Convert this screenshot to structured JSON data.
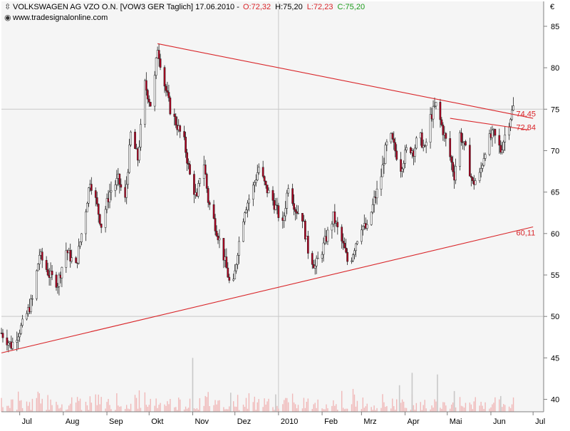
{
  "header": {
    "name": "VOLKSWAGEN AG VZO O.N. [VOW3 GER  Taglich] 17.06.2010 -",
    "open": "O:72,32",
    "high": "H:75,20",
    "low": "L:72,23",
    "close": "C:75,20",
    "watermark": "www.tradesignalonline.com",
    "currency": "€"
  },
  "colors": {
    "background": "#f5f5f5",
    "grid": "#c8c8c8",
    "up": "#ffffff",
    "down": "#b00020",
    "trendline": "#d9262a",
    "volume": "#f0b8b8",
    "volume_peak": "#c8c8c8",
    "header_low": "#d9262a",
    "header_close": "#1a9a1a"
  },
  "chart_data": {
    "type": "candlestick",
    "title": "",
    "xlabel": "",
    "ylabel": "",
    "ylim": [
      38.5,
      88
    ],
    "yticks": [
      40,
      45,
      50,
      55,
      60,
      65,
      70,
      75,
      80,
      85
    ],
    "ytick_labels": [
      "40",
      "45",
      "50",
      "55",
      "60",
      "65",
      "70",
      "75",
      "80",
      "85"
    ],
    "x_start": "2009-06-18",
    "x_end": "2010-07-08",
    "month_ticks": [
      {
        "date": "2009-07-01",
        "label": "Jul"
      },
      {
        "date": "2009-08-01",
        "label": "Aug"
      },
      {
        "date": "2009-09-01",
        "label": "Sep"
      },
      {
        "date": "2009-10-01",
        "label": "Okt"
      },
      {
        "date": "2009-11-01",
        "label": "Nov"
      },
      {
        "date": "2009-12-01",
        "label": "Dez"
      },
      {
        "date": "2010-01-01",
        "label": "2010"
      },
      {
        "date": "2010-02-01",
        "label": "Feb"
      },
      {
        "date": "2010-03-01",
        "label": "Mrz"
      },
      {
        "date": "2010-04-01",
        "label": "Apr"
      },
      {
        "date": "2010-05-01",
        "label": "Mai"
      },
      {
        "date": "2010-06-01",
        "label": "Jun"
      },
      {
        "date": "2010-07-01",
        "label": "Jul"
      }
    ],
    "grid_y": [
      50,
      75
    ],
    "grid_x": [
      "2010-01-01"
    ],
    "price_path": [
      [
        "2009-06-18",
        48.0
      ],
      [
        "2009-06-25",
        46.5
      ],
      [
        "2009-07-03",
        49.0
      ],
      [
        "2009-07-10",
        52.0
      ],
      [
        "2009-07-15",
        57.5
      ],
      [
        "2009-07-22",
        55.0
      ],
      [
        "2009-07-28",
        54.0
      ],
      [
        "2009-08-03",
        58.0
      ],
      [
        "2009-08-10",
        56.0
      ],
      [
        "2009-08-17",
        63.0
      ],
      [
        "2009-08-20",
        66.5
      ],
      [
        "2009-08-24",
        64.0
      ],
      [
        "2009-08-28",
        61.0
      ],
      [
        "2009-09-03",
        65.0
      ],
      [
        "2009-09-09",
        66.5
      ],
      [
        "2009-09-14",
        64.0
      ],
      [
        "2009-09-18",
        72.0
      ],
      [
        "2009-09-23",
        69.0
      ],
      [
        "2009-09-28",
        78.0
      ],
      [
        "2009-10-03",
        75.0
      ],
      [
        "2009-10-07",
        82.5
      ],
      [
        "2009-10-12",
        78.0
      ],
      [
        "2009-10-16",
        75.0
      ],
      [
        "2009-10-21",
        73.0
      ],
      [
        "2009-10-26",
        71.0
      ],
      [
        "2009-10-30",
        67.0
      ],
      [
        "2009-11-04",
        64.0
      ],
      [
        "2009-11-08",
        70.0
      ],
      [
        "2009-11-12",
        64.0
      ],
      [
        "2009-11-17",
        61.0
      ],
      [
        "2009-11-22",
        58.0
      ],
      [
        "2009-11-26",
        55.0
      ],
      [
        "2009-11-29",
        52.5
      ],
      [
        "2009-12-03",
        58.0
      ],
      [
        "2009-12-08",
        63.0
      ],
      [
        "2009-12-13",
        65.0
      ],
      [
        "2009-12-18",
        68.0
      ],
      [
        "2009-12-23",
        65.5
      ],
      [
        "2009-12-28",
        64.0
      ],
      [
        "2010-01-04",
        61.0
      ],
      [
        "2010-01-08",
        66.0
      ],
      [
        "2010-01-13",
        63.0
      ],
      [
        "2010-01-18",
        62.0
      ],
      [
        "2010-01-22",
        58.0
      ],
      [
        "2010-01-27",
        56.0
      ],
      [
        "2010-02-01",
        58.0
      ],
      [
        "2010-02-05",
        60.0
      ],
      [
        "2010-02-09",
        62.0
      ],
      [
        "2010-02-13",
        60.0
      ],
      [
        "2010-02-17",
        58.0
      ],
      [
        "2010-02-20",
        56.0
      ],
      [
        "2010-02-25",
        59.0
      ],
      [
        "2010-03-01",
        61.0
      ],
      [
        "2010-03-05",
        60.5
      ],
      [
        "2010-03-10",
        64.0
      ],
      [
        "2010-03-14",
        66.0
      ],
      [
        "2010-03-18",
        70.0
      ],
      [
        "2010-03-21",
        72.0
      ],
      [
        "2010-03-25",
        70.0
      ],
      [
        "2010-03-29",
        68.0
      ],
      [
        "2010-04-03",
        70.5
      ],
      [
        "2010-04-07",
        70.0
      ],
      [
        "2010-04-11",
        72.0
      ],
      [
        "2010-04-15",
        70.0
      ],
      [
        "2010-04-19",
        74.0
      ],
      [
        "2010-04-23",
        75.5
      ],
      [
        "2010-04-27",
        73.0
      ],
      [
        "2010-05-02",
        70.0
      ],
      [
        "2010-05-06",
        67.0
      ],
      [
        "2010-05-10",
        72.0
      ],
      [
        "2010-05-14",
        70.0
      ],
      [
        "2010-05-19",
        66.0
      ],
      [
        "2010-05-24",
        67.0
      ],
      [
        "2010-05-29",
        71.0
      ],
      [
        "2010-06-03",
        72.0
      ],
      [
        "2010-06-08",
        70.0
      ],
      [
        "2010-06-12",
        72.5
      ],
      [
        "2010-06-17",
        75.2
      ]
    ],
    "candle_range": 1.4,
    "volume_peaks": [
      {
        "date": "2009-11-01",
        "value": 45.0
      },
      {
        "date": "2009-11-28",
        "value": 40.8
      },
      {
        "date": "2009-12-30",
        "value": 40.6
      },
      {
        "date": "2010-03-28",
        "value": 41.7
      },
      {
        "date": "2010-04-06",
        "value": 43.2
      },
      {
        "date": "2010-04-24",
        "value": 43.0
      },
      {
        "date": "2010-05-06",
        "value": 41.0
      },
      {
        "date": "2010-06-08",
        "value": 40.4
      }
    ],
    "volume_base": 41.5,
    "trendlines": [
      {
        "label": "",
        "start": [
          "2009-10-07",
          82.9
        ],
        "end": [
          "2010-07-01",
          73.9
        ]
      },
      {
        "label": "",
        "start": [
          "2010-05-03",
          73.9
        ],
        "end": [
          "2010-06-28",
          72.5
        ]
      },
      {
        "label": "",
        "start": [
          "2009-06-18",
          45.6
        ],
        "end": [
          "2010-07-01",
          60.8
        ]
      }
    ],
    "annotations": [
      {
        "text": "74,45",
        "value": 74.45,
        "date": "2010-06-19"
      },
      {
        "text": "72,84",
        "value": 72.84,
        "date": "2010-06-19"
      },
      {
        "text": "60,11",
        "value": 60.11,
        "date": "2010-06-19"
      }
    ]
  }
}
